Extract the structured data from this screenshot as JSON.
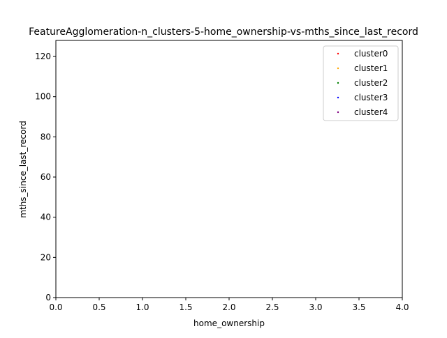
{
  "chart_data": {
    "type": "scatter",
    "title": "FeatureAgglomeration-n_clusters-5-home_ownership-vs-mths_since_last_record",
    "xlabel": "home_ownership",
    "ylabel": "mths_since_last_record",
    "xlim": [
      0,
      4
    ],
    "ylim": [
      0,
      128
    ],
    "xticks": [
      "0.0",
      "0.5",
      "1.0",
      "1.5",
      "2.0",
      "2.5",
      "3.0",
      "3.5",
      "4.0"
    ],
    "xtick_values": [
      0,
      0.5,
      1,
      1.5,
      2,
      2.5,
      3,
      3.5,
      4
    ],
    "yticks": [
      "0",
      "20",
      "40",
      "60",
      "80",
      "100",
      "120"
    ],
    "ytick_values": [
      0,
      20,
      40,
      60,
      80,
      100,
      120
    ],
    "grid": false,
    "legend_position": "top-right",
    "series": [
      {
        "name": "cluster0",
        "color": "#ff0000",
        "points": []
      },
      {
        "name": "cluster1",
        "color": "#ffa500",
        "points": []
      },
      {
        "name": "cluster2",
        "color": "#008000",
        "points": []
      },
      {
        "name": "cluster3",
        "color": "#0000ff",
        "points": []
      },
      {
        "name": "cluster4",
        "color": "#800080",
        "points": []
      }
    ]
  }
}
